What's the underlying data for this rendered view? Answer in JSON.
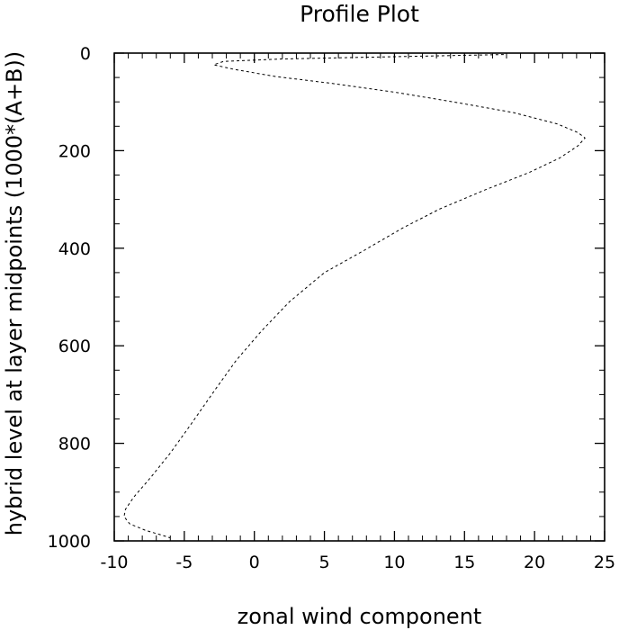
{
  "chart_data": {
    "type": "line",
    "title": "Profile Plot",
    "xlabel": "zonal wind component",
    "ylabel": "hybrid level at layer midpoints (1000*(A+B))",
    "xlim": [
      -10,
      25
    ],
    "ylim": [
      1000,
      0
    ],
    "y_inverted": true,
    "grid": false,
    "line_style": "dashed",
    "line_color": "#000000",
    "x_ticks": [
      -10,
      -5,
      0,
      5,
      10,
      15,
      20,
      25
    ],
    "x_tick_labels": [
      "-10",
      "-5",
      "0",
      "5",
      "10",
      "15",
      "20",
      "25"
    ],
    "y_ticks": [
      0,
      200,
      400,
      600,
      800,
      1000
    ],
    "y_tick_labels": [
      "0",
      "200",
      "400",
      "600",
      "800",
      "1000"
    ],
    "series": [
      {
        "points": [
          {
            "x": 17.8,
            "y": 3
          },
          {
            "x": 9.0,
            "y": 8
          },
          {
            "x": 2.0,
            "y": 12
          },
          {
            "x": -2.2,
            "y": 17
          },
          {
            "x": -2.9,
            "y": 24
          },
          {
            "x": -1.5,
            "y": 33
          },
          {
            "x": 1.5,
            "y": 48
          },
          {
            "x": 5.5,
            "y": 62
          },
          {
            "x": 10.0,
            "y": 80
          },
          {
            "x": 14.2,
            "y": 100
          },
          {
            "x": 18.5,
            "y": 122
          },
          {
            "x": 21.6,
            "y": 145
          },
          {
            "x": 23.1,
            "y": 163
          },
          {
            "x": 23.6,
            "y": 174
          },
          {
            "x": 23.1,
            "y": 190
          },
          {
            "x": 21.8,
            "y": 215
          },
          {
            "x": 19.6,
            "y": 245
          },
          {
            "x": 16.5,
            "y": 280
          },
          {
            "x": 13.2,
            "y": 320
          },
          {
            "x": 10.5,
            "y": 360
          },
          {
            "x": 7.8,
            "y": 405
          },
          {
            "x": 5.0,
            "y": 450
          },
          {
            "x": 2.5,
            "y": 510
          },
          {
            "x": 0.5,
            "y": 570
          },
          {
            "x": -1.3,
            "y": 630
          },
          {
            "x": -2.8,
            "y": 690
          },
          {
            "x": -4.5,
            "y": 760
          },
          {
            "x": -6.0,
            "y": 820
          },
          {
            "x": -7.4,
            "y": 870
          },
          {
            "x": -8.6,
            "y": 910
          },
          {
            "x": -9.2,
            "y": 935
          },
          {
            "x": -9.3,
            "y": 950
          },
          {
            "x": -8.9,
            "y": 965
          },
          {
            "x": -7.8,
            "y": 978
          },
          {
            "x": -6.4,
            "y": 990
          },
          {
            "x": -6.0,
            "y": 994
          }
        ]
      }
    ]
  }
}
